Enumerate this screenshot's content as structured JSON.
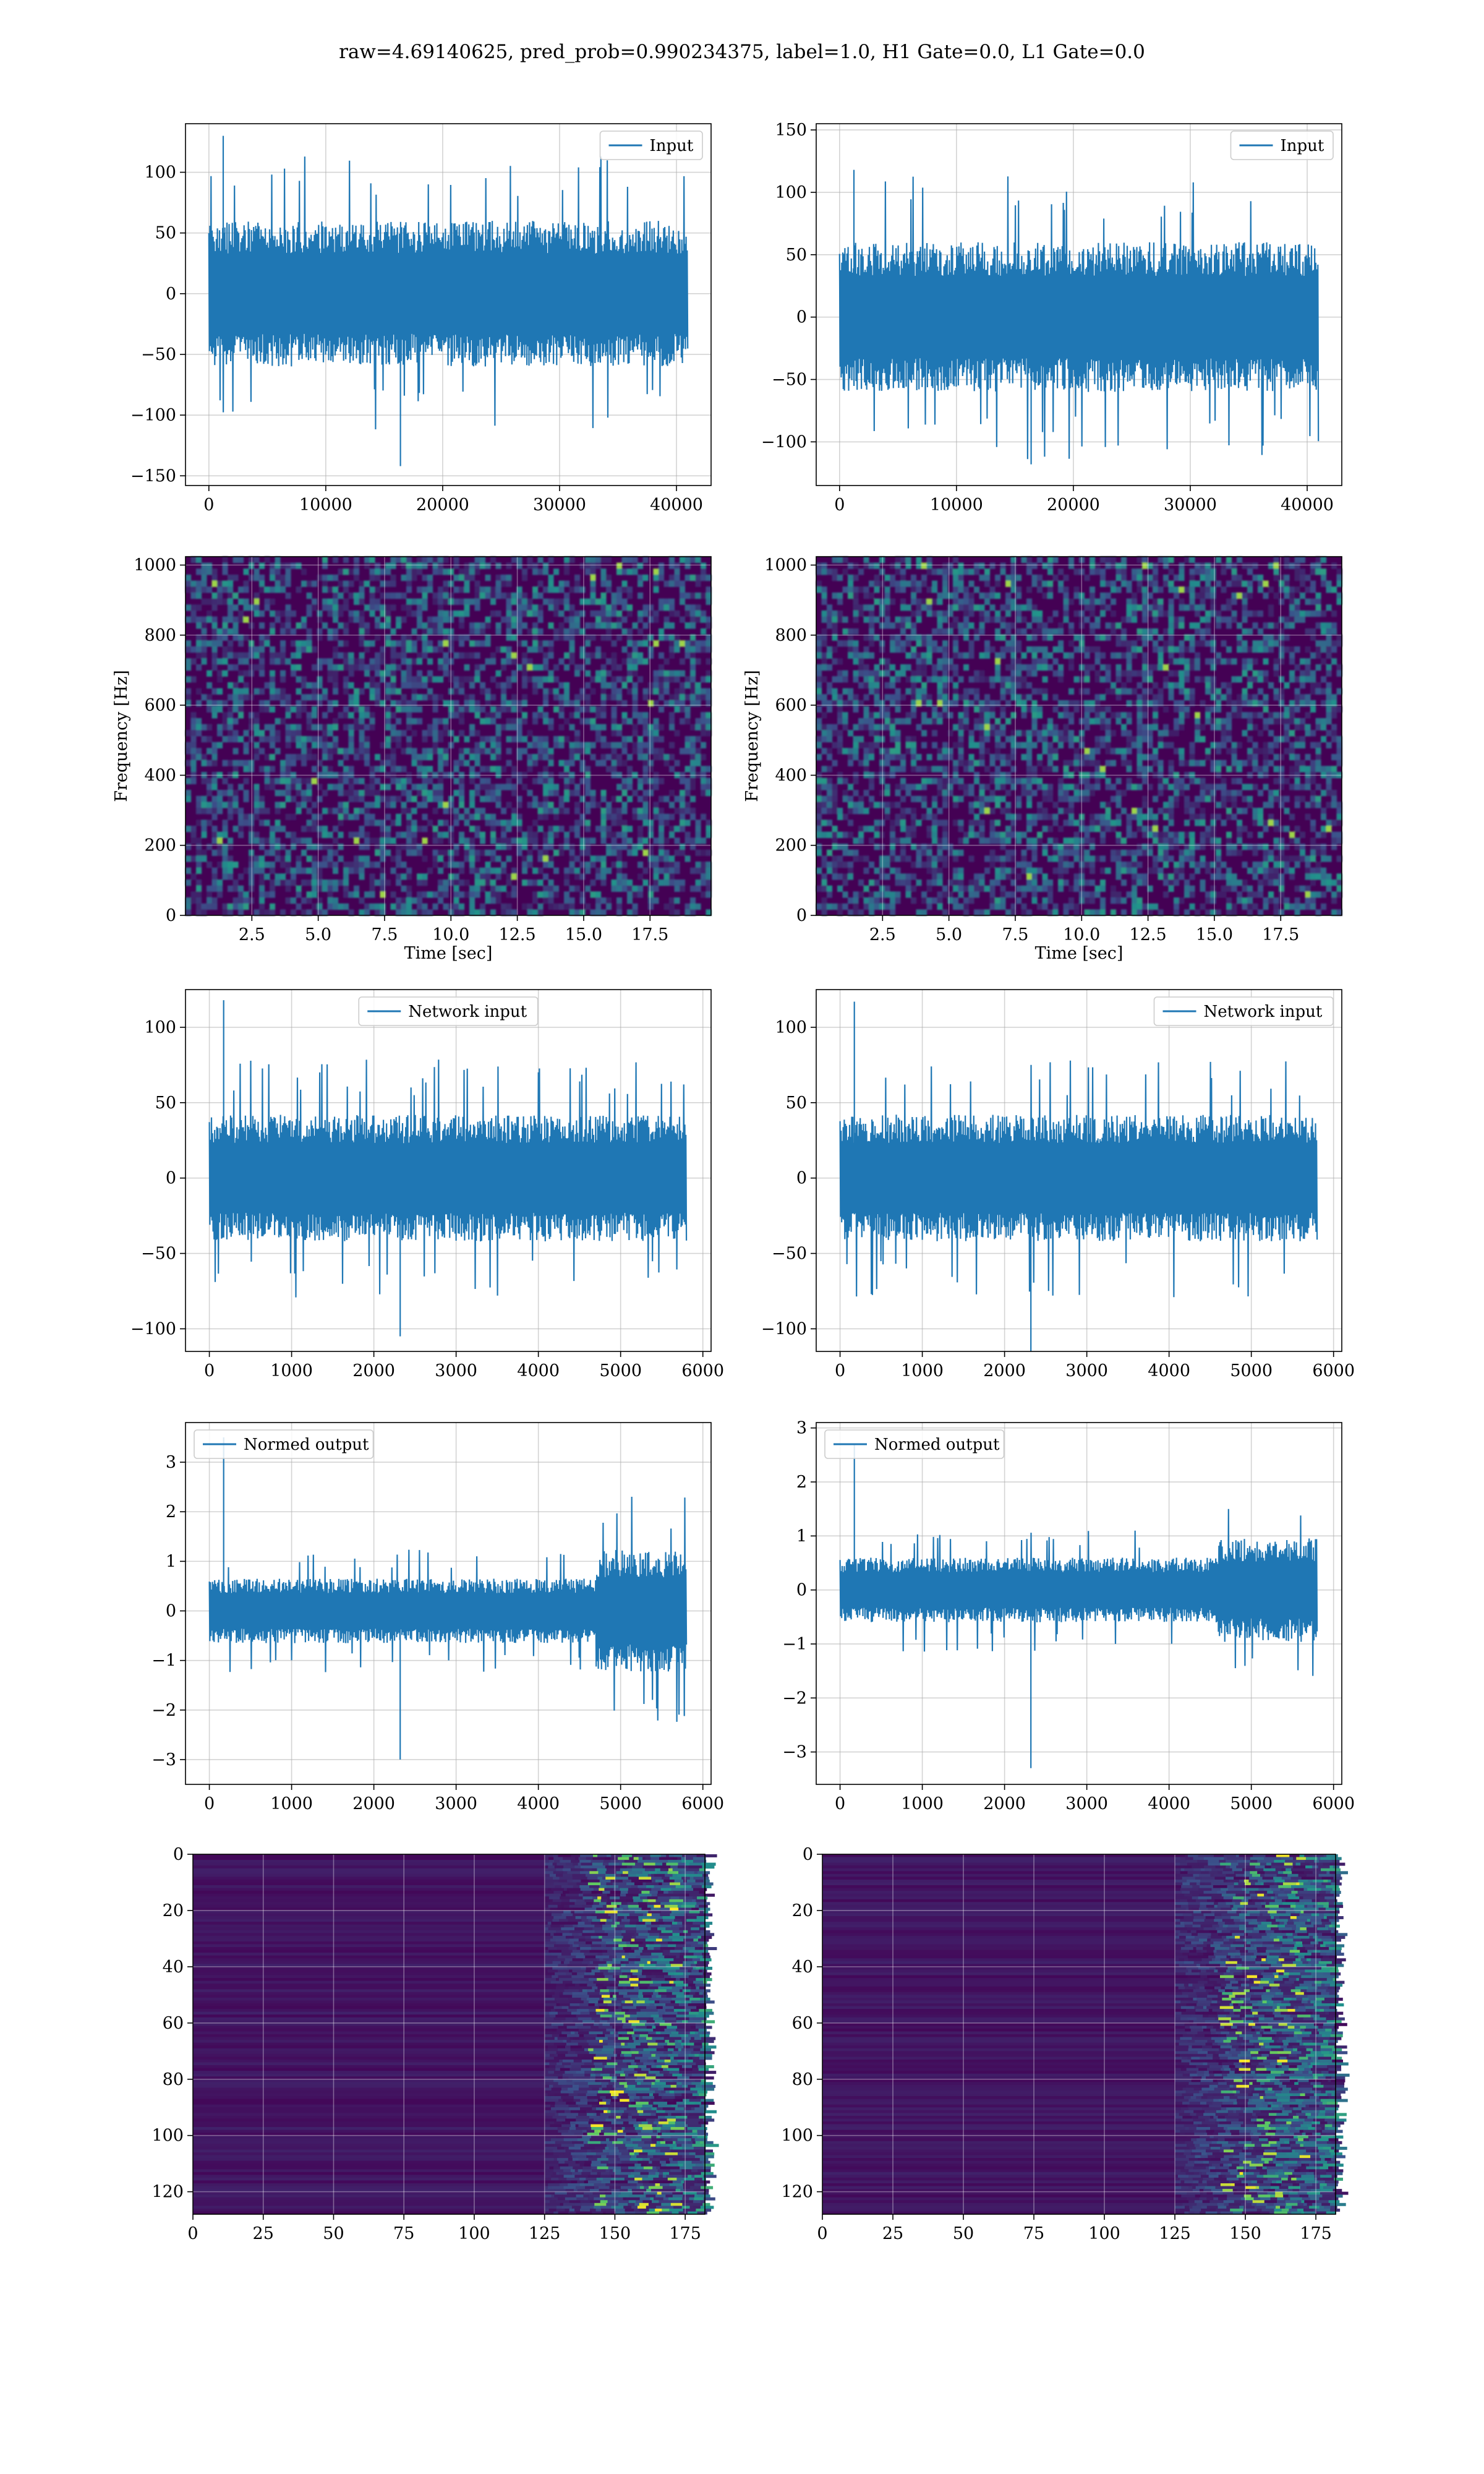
{
  "suptitle": "raw=4.69140625, pred_prob=0.990234375, label=1.0, H1 Gate=0.0, L1 Gate=0.0",
  "colors": {
    "line": "#1f77b4",
    "grid": "#b0b0b0",
    "viridis_dark": "#440154",
    "viridis_mid": "#21918c",
    "viridis_bright": "#fde725"
  },
  "chart_data": [
    {
      "id": "input-h1",
      "type": "line",
      "legend": "Input",
      "legend_loc": "upper right",
      "grid": true,
      "xlim": [
        -2000,
        42960
      ],
      "ylim": [
        -158,
        140
      ],
      "xticks": [
        0,
        10000,
        20000,
        30000,
        40000
      ],
      "yticks": [
        -150,
        -100,
        -50,
        0,
        50,
        100
      ],
      "x_range": [
        0,
        40960
      ],
      "envelope": {
        "typical": 60,
        "peak": 130,
        "trough": -142,
        "baseline_shift": []
      }
    },
    {
      "id": "input-l1",
      "type": "line",
      "legend": "Input",
      "legend_loc": "upper right",
      "grid": true,
      "xlim": [
        -2000,
        42960
      ],
      "ylim": [
        -135,
        155
      ],
      "xticks": [
        0,
        10000,
        20000,
        30000,
        40000
      ],
      "yticks": [
        -100,
        -50,
        0,
        50,
        100,
        150
      ],
      "x_range": [
        0,
        40960
      ],
      "envelope": {
        "typical": 60,
        "peak": 118,
        "trough": -118,
        "baseline_shift": []
      }
    },
    {
      "id": "spec-h1",
      "type": "heatmap",
      "xlabel": "Time [sec]",
      "ylabel": "Frequency [Hz]",
      "grid": true,
      "xlim": [
        0,
        19.8
      ],
      "ylim": [
        0,
        1024
      ],
      "xticks": [
        2.5,
        5.0,
        7.5,
        10.0,
        12.5,
        15.0,
        17.5
      ],
      "xtick_labels": [
        "2.5",
        "5.0",
        "7.5",
        "10.0",
        "12.5",
        "15.0",
        "17.5"
      ],
      "yticks": [
        0,
        200,
        400,
        600,
        800,
        1000
      ],
      "colormap": "viridis"
    },
    {
      "id": "spec-l1",
      "type": "heatmap",
      "xlabel": "Time [sec]",
      "ylabel": "Frequency [Hz]",
      "grid": true,
      "xlim": [
        0,
        19.8
      ],
      "ylim": [
        0,
        1024
      ],
      "xticks": [
        2.5,
        5.0,
        7.5,
        10.0,
        12.5,
        15.0,
        17.5
      ],
      "xtick_labels": [
        "2.5",
        "5.0",
        "7.5",
        "10.0",
        "12.5",
        "15.0",
        "17.5"
      ],
      "yticks": [
        0,
        200,
        400,
        600,
        800,
        1000
      ],
      "colormap": "viridis"
    },
    {
      "id": "network-h1",
      "type": "line",
      "legend": "Network input",
      "legend_loc": "upper center",
      "grid": true,
      "xlim": [
        -290,
        6100
      ],
      "ylim": [
        -115,
        125
      ],
      "xticks": [
        0,
        1000,
        2000,
        3000,
        4000,
        5000,
        6000
      ],
      "yticks": [
        -100,
        -50,
        0,
        50,
        100
      ],
      "x_range": [
        0,
        5800
      ],
      "envelope": {
        "typical": 42,
        "peak": 118,
        "trough": -105,
        "baseline_shift": []
      }
    },
    {
      "id": "network-l1",
      "type": "line",
      "legend": "Network input",
      "legend_loc": "upper right",
      "grid": true,
      "xlim": [
        -290,
        6100
      ],
      "ylim": [
        -115,
        125
      ],
      "xticks": [
        0,
        1000,
        2000,
        3000,
        4000,
        5000,
        6000
      ],
      "yticks": [
        -100,
        -50,
        0,
        50,
        100
      ],
      "x_range": [
        0,
        5800
      ],
      "envelope": {
        "typical": 42,
        "peak": 117,
        "trough": -115,
        "baseline_shift": []
      }
    },
    {
      "id": "normed-h1",
      "type": "line",
      "legend": "Normed output",
      "legend_loc": "upper left",
      "grid": true,
      "xlim": [
        -290,
        6100
      ],
      "ylim": [
        -3.5,
        3.8
      ],
      "xticks": [
        0,
        1000,
        2000,
        3000,
        4000,
        5000,
        6000
      ],
      "yticks": [
        -3,
        -2,
        -1,
        0,
        1,
        2,
        3
      ],
      "x_range": [
        0,
        5800
      ],
      "envelope": {
        "typical": 0.65,
        "peak": 3.5,
        "trough": -3.0,
        "baseline_shift": [
          [
            4700,
            5800,
            1.9
          ]
        ]
      }
    },
    {
      "id": "normed-l1",
      "type": "line",
      "legend": "Normed output",
      "legend_loc": "upper left",
      "grid": true,
      "xlim": [
        -290,
        6100
      ],
      "ylim": [
        -3.6,
        3.1
      ],
      "xticks": [
        0,
        1000,
        2000,
        3000,
        4000,
        5000,
        6000
      ],
      "yticks": [
        -3,
        -2,
        -1,
        0,
        1,
        2,
        3
      ],
      "x_range": [
        0,
        5800
      ],
      "envelope": {
        "typical": 0.6,
        "peak": 2.7,
        "trough": -3.3,
        "baseline_shift": [
          [
            4600,
            5800,
            1.6
          ]
        ]
      }
    },
    {
      "id": "feature-h1",
      "type": "heatmap",
      "grid": true,
      "xlim": [
        0,
        182
      ],
      "ylim": [
        128,
        0
      ],
      "xticks": [
        0,
        25,
        50,
        75,
        100,
        125,
        150,
        175
      ],
      "yticks": [
        0,
        20,
        40,
        60,
        80,
        100,
        120
      ],
      "colormap": "viridis",
      "active_from": 125
    },
    {
      "id": "feature-l1",
      "type": "heatmap",
      "grid": true,
      "xlim": [
        0,
        182
      ],
      "ylim": [
        128,
        0
      ],
      "xticks": [
        0,
        25,
        50,
        75,
        100,
        125,
        150,
        175
      ],
      "yticks": [
        0,
        20,
        40,
        60,
        80,
        100,
        120
      ],
      "colormap": "viridis",
      "active_from": 125
    }
  ]
}
